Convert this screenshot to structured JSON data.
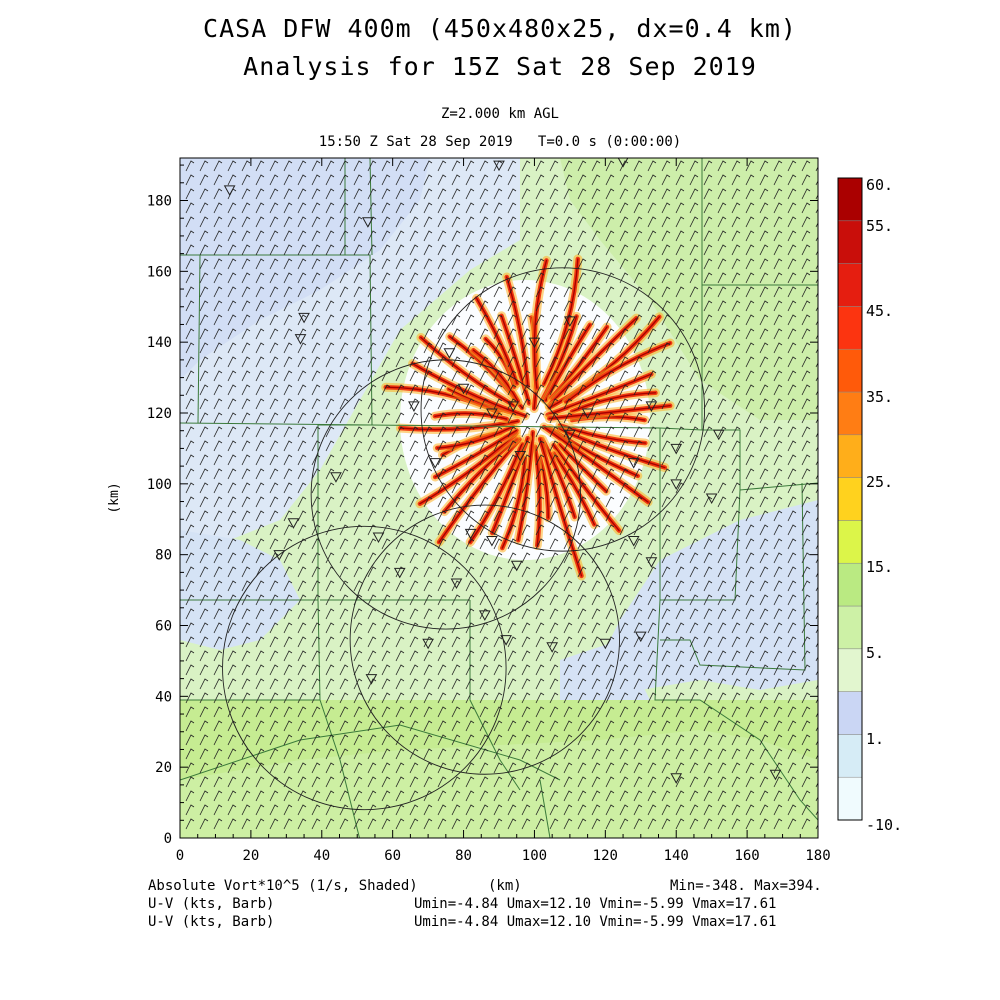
{
  "title_line1": "CASA DFW 400m (450x480x25, dx=0.4 km)",
  "title_line2": "Analysis for 15Z Sat 28 Sep 2019",
  "subtitle_line1": "Z=2.000 km AGL",
  "subtitle_line2": "15:50 Z Sat 28 Sep 2019   T=0.0 s (0:00:00)",
  "axes": {
    "x_label": "(km)",
    "y_label": "(km)",
    "x_range": [
      0,
      180
    ],
    "y_range": [
      0,
      192
    ],
    "x_ticks": [
      "0",
      "20",
      "40",
      "60",
      "80",
      "100",
      "120",
      "140",
      "160",
      "180"
    ],
    "y_ticks": [
      "0",
      "20",
      "40",
      "60",
      "80",
      "100",
      "120",
      "140",
      "160",
      "180"
    ]
  },
  "colorbar": {
    "labels": [
      "60.",
      "55.",
      "45.",
      "35.",
      "25.",
      "15.",
      "5.",
      "1.",
      "-10."
    ],
    "colors": [
      "#f0fbfe",
      "#d6ecf6",
      "#cad6f4",
      "#e2f6cf",
      "#cdf1a6",
      "#baea82",
      "#dcf549",
      "#ffd21e",
      "#ffae1a",
      "#ff7d14",
      "#ff5a0a",
      "#fc3410",
      "#e51e10",
      "#c90e0a",
      "#aa0000"
    ]
  },
  "footer": {
    "field_label": "Absolute Vort*10^5 (1/s, Shaded)",
    "x_unit": "(km)",
    "minmax": "Min=-348. Max=394.",
    "wind_label_1": "U-V (kts, Barb)",
    "wind_stats_1": "Umin=-4.84 Umax=12.10 Vmin=-5.99 Vmax=17.61",
    "wind_label_2": "U-V (kts, Barb)",
    "wind_stats_2": "Umin=-4.84 Umax=12.10 Vmin=-5.99 Vmax=17.61"
  },
  "map": {
    "vortex_center_km": [
      100,
      118
    ],
    "radar_range_rings_km": [
      {
        "center": [
          108,
          121
        ],
        "radius": 40
      },
      {
        "center": [
          75,
          97
        ],
        "radius": 38
      },
      {
        "center": [
          52,
          48
        ],
        "radius": 40
      },
      {
        "center": [
          86,
          56
        ],
        "radius": 38
      }
    ]
  },
  "colors": {
    "background": "#ffffff",
    "text": "#000000",
    "boundary": "#3a7a3a",
    "barb": "#222222"
  }
}
